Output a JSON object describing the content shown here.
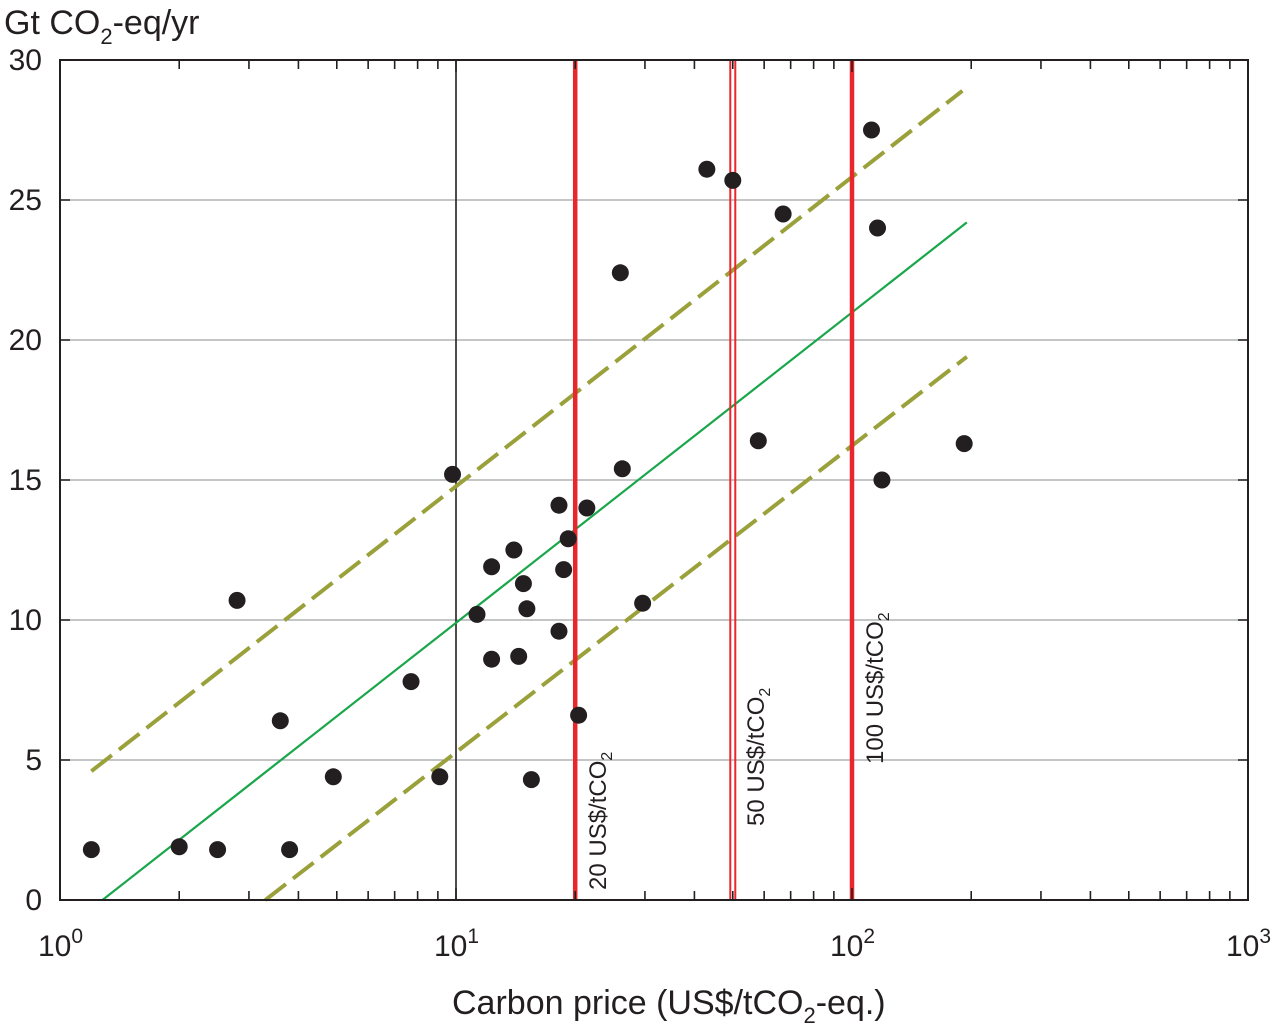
{
  "chart_data": {
    "type": "scatter",
    "title": "",
    "ylabel": {
      "main": "Gt CO",
      "sub": "2",
      "tail": "-eq/yr"
    },
    "xlabel": {
      "main": "Carbon price  (US$/tCO",
      "sub": "2",
      "tail": "-eq.)"
    },
    "x_scale": "log",
    "xlim": [
      1,
      1000
    ],
    "ylim": [
      0,
      30
    ],
    "grid": true,
    "y_ticks": [
      "0",
      "5",
      "10",
      "15",
      "20",
      "25",
      "30"
    ],
    "y_tick_values": [
      0,
      5,
      10,
      15,
      20,
      25,
      30
    ],
    "x_ticks": [
      {
        "value": 1,
        "base": "10",
        "exp": "0"
      },
      {
        "value": 10,
        "base": "10",
        "exp": "1"
      },
      {
        "value": 100,
        "base": "10",
        "exp": "2"
      },
      {
        "value": 1000,
        "base": "10",
        "exp": "3"
      }
    ],
    "reference_lines": [
      {
        "x": 20,
        "label": "20 US$/tCO",
        "sub": "2",
        "style": "solid",
        "color": "#e8262b"
      },
      {
        "x": 50,
        "label": "50 US$/tCO",
        "sub": "2",
        "style": "double",
        "color": "#e8262b"
      },
      {
        "x": 100,
        "label": "100 US$/tCO",
        "sub": "2",
        "style": "solid",
        "color": "#e8262b"
      }
    ],
    "fit_lines": [
      {
        "name": "",
        "style": "solid",
        "color": "#1aa64b",
        "points": [
          [
            1.28,
            0.0
          ],
          [
            195,
            24.2
          ]
        ]
      },
      {
        "name": "",
        "style": "dashed",
        "color": "#9aa13a",
        "points": [
          [
            1.2,
            4.6
          ],
          [
            190,
            28.9
          ]
        ]
      },
      {
        "name": "",
        "style": "dashed",
        "color": "#9aa13a",
        "points": [
          [
            3.3,
            0.0
          ],
          [
            195,
            19.4
          ]
        ]
      }
    ],
    "series": [
      {
        "name": "",
        "color": "#231f20",
        "points": [
          [
            1.2,
            1.8
          ],
          [
            2.0,
            1.9
          ],
          [
            2.5,
            1.8
          ],
          [
            2.8,
            10.7
          ],
          [
            3.6,
            6.4
          ],
          [
            3.8,
            1.8
          ],
          [
            4.9,
            4.4
          ],
          [
            7.7,
            7.8
          ],
          [
            9.1,
            4.4
          ],
          [
            9.8,
            15.2
          ],
          [
            11.3,
            10.2
          ],
          [
            12.3,
            11.9
          ],
          [
            12.3,
            8.6
          ],
          [
            14.0,
            12.5
          ],
          [
            14.4,
            8.7
          ],
          [
            14.8,
            11.3
          ],
          [
            15.1,
            10.4
          ],
          [
            15.5,
            4.3
          ],
          [
            18.2,
            9.6
          ],
          [
            18.2,
            14.1
          ],
          [
            18.7,
            11.8
          ],
          [
            19.2,
            12.9
          ],
          [
            20.4,
            6.6
          ],
          [
            21.4,
            14.0
          ],
          [
            26.0,
            22.4
          ],
          [
            26.3,
            15.4
          ],
          [
            29.6,
            10.6
          ],
          [
            43.0,
            26.1
          ],
          [
            50.0,
            25.7
          ],
          [
            58.0,
            16.4
          ],
          [
            67.0,
            24.5
          ],
          [
            112,
            27.5
          ],
          [
            116,
            24.0
          ],
          [
            119,
            15.0
          ],
          [
            192,
            16.3
          ]
        ]
      }
    ]
  }
}
